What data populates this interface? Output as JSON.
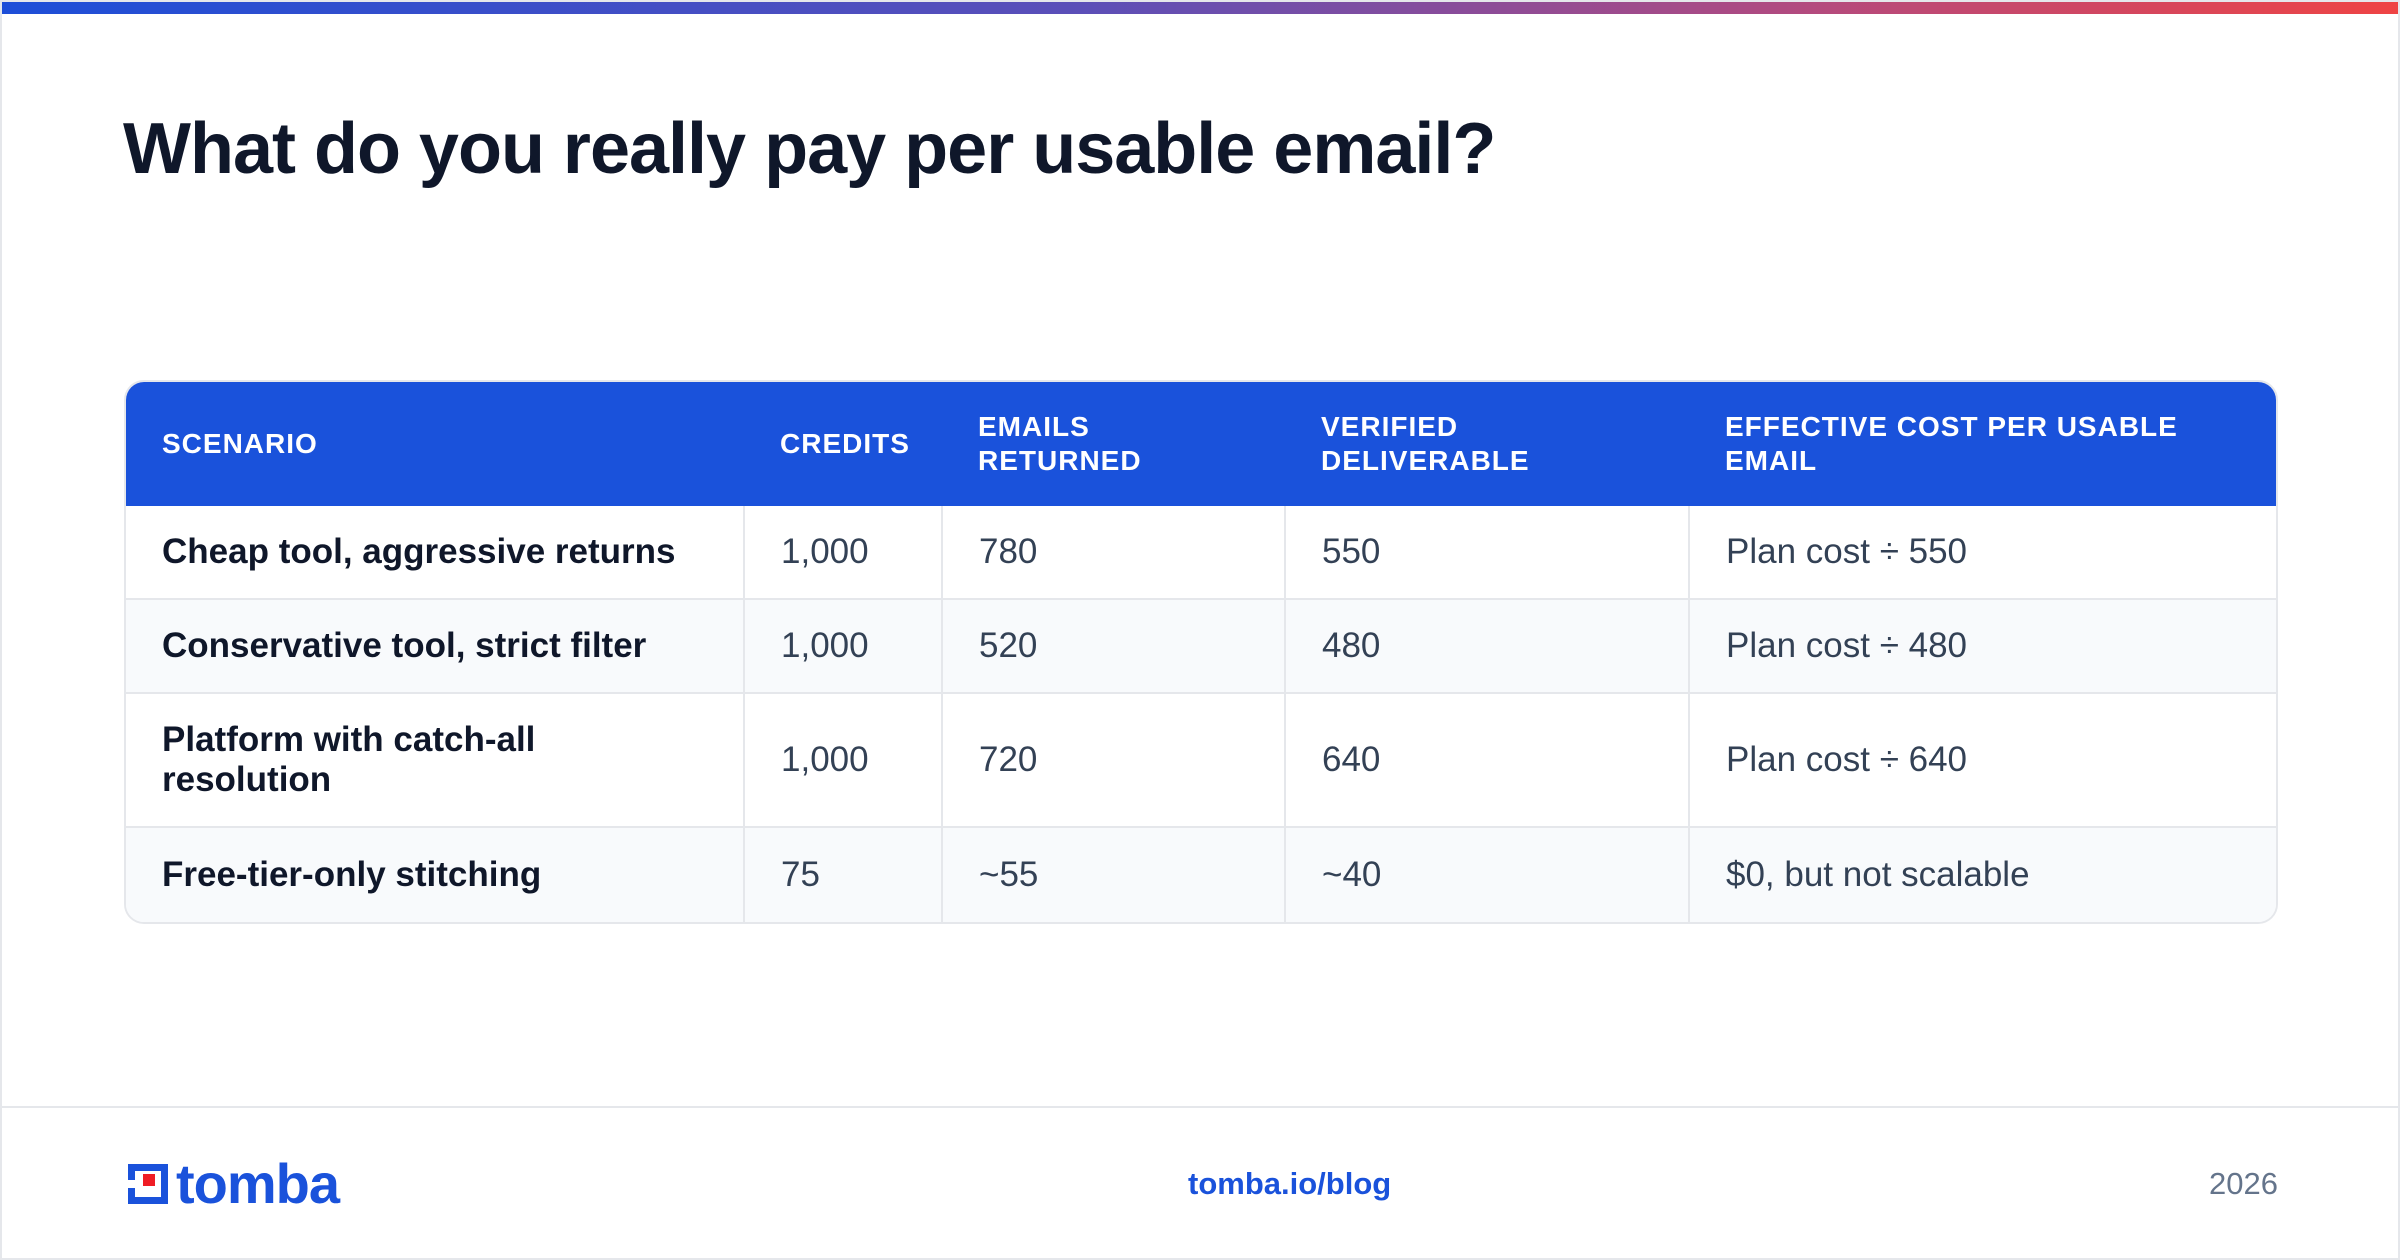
{
  "title": "What do you really pay per usable email?",
  "table": {
    "headers": [
      "SCENARIO",
      "CREDITS",
      "EMAILS RETURNED",
      "VERIFIED DELIVERABLE",
      "EFFECTIVE COST PER USABLE EMAIL"
    ],
    "rows": [
      [
        "Cheap tool, aggressive returns",
        "1,000",
        "780",
        "550",
        "Plan cost ÷ 550"
      ],
      [
        "Conservative tool, strict filter",
        "1,000",
        "520",
        "480",
        "Plan cost ÷ 480"
      ],
      [
        "Platform with catch-all resolution",
        "1,000",
        "720",
        "640",
        "Plan cost ÷ 640"
      ],
      [
        "Free-tier-only stitching",
        "75",
        "~55",
        "~40",
        "$0, but not scalable"
      ]
    ]
  },
  "footer": {
    "brand": "tomba",
    "link": "tomba.io/blog",
    "year": "2026"
  },
  "colors": {
    "accent": "#1a52db",
    "logo_accent": "#ef1c24",
    "header_text": "#ffffff",
    "row_alt": "#f8fafc"
  }
}
